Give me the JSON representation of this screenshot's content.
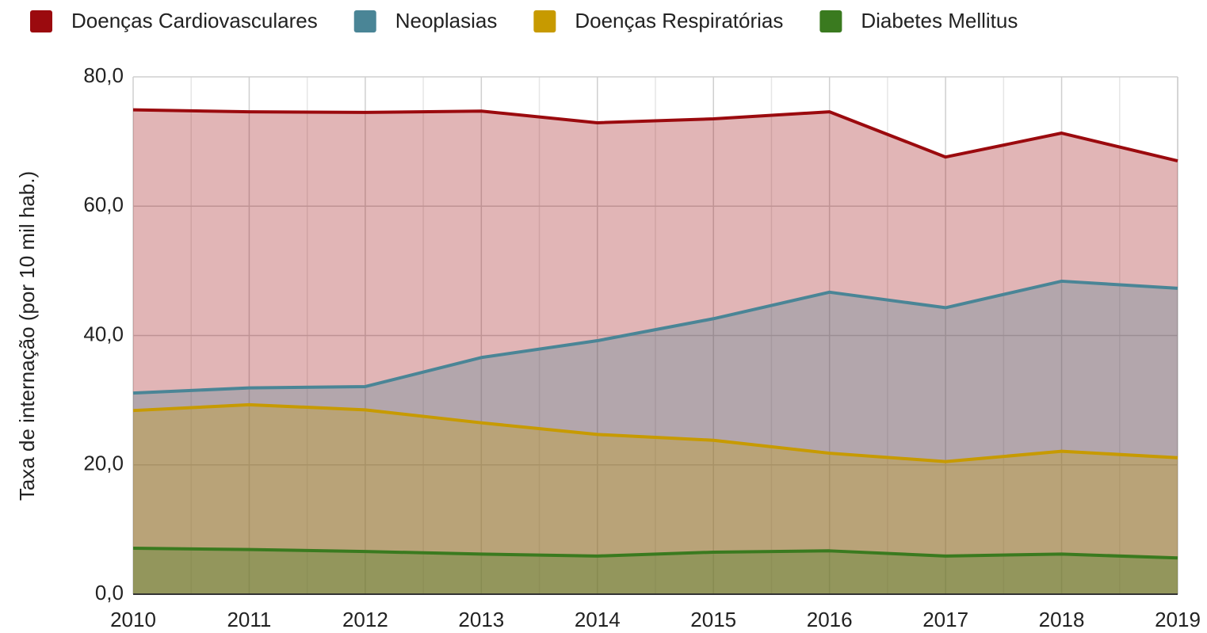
{
  "chart_data": {
    "type": "area",
    "y_label": "Taxa de internação (por 10 mil hab.)",
    "categories": [
      "2010",
      "2011",
      "2012",
      "2013",
      "2014",
      "2015",
      "2016",
      "2017",
      "2018",
      "2019"
    ],
    "series": [
      {
        "name": "Doenças Cardiovasculares",
        "color": "#9b0a0e",
        "values": [
          74.9,
          74.6,
          74.5,
          74.7,
          72.9,
          73.5,
          74.6,
          67.6,
          71.3,
          67.0
        ]
      },
      {
        "name": "Neoplasias",
        "color": "#4a8596",
        "values": [
          31.1,
          31.9,
          32.1,
          36.6,
          39.2,
          42.6,
          46.7,
          44.3,
          48.4,
          47.3
        ]
      },
      {
        "name": "Doenças Respiratórias",
        "color": "#c79a00",
        "values": [
          28.4,
          29.3,
          28.5,
          26.5,
          24.7,
          23.8,
          21.8,
          20.5,
          22.1,
          21.1
        ]
      },
      {
        "name": "Diabetes Mellitus",
        "color": "#3a7a1f",
        "values": [
          7.1,
          6.9,
          6.6,
          6.2,
          5.9,
          6.5,
          6.7,
          5.9,
          6.2,
          5.6
        ]
      }
    ],
    "ylim": [
      0,
      80
    ],
    "yticks": [
      {
        "value": 0,
        "label": "0,0"
      },
      {
        "value": 20,
        "label": "20,0"
      },
      {
        "value": 40,
        "label": "40,0"
      },
      {
        "value": 60,
        "label": "60,0"
      },
      {
        "value": 80,
        "label": "80,0"
      }
    ],
    "grid": true,
    "legend": "top"
  }
}
